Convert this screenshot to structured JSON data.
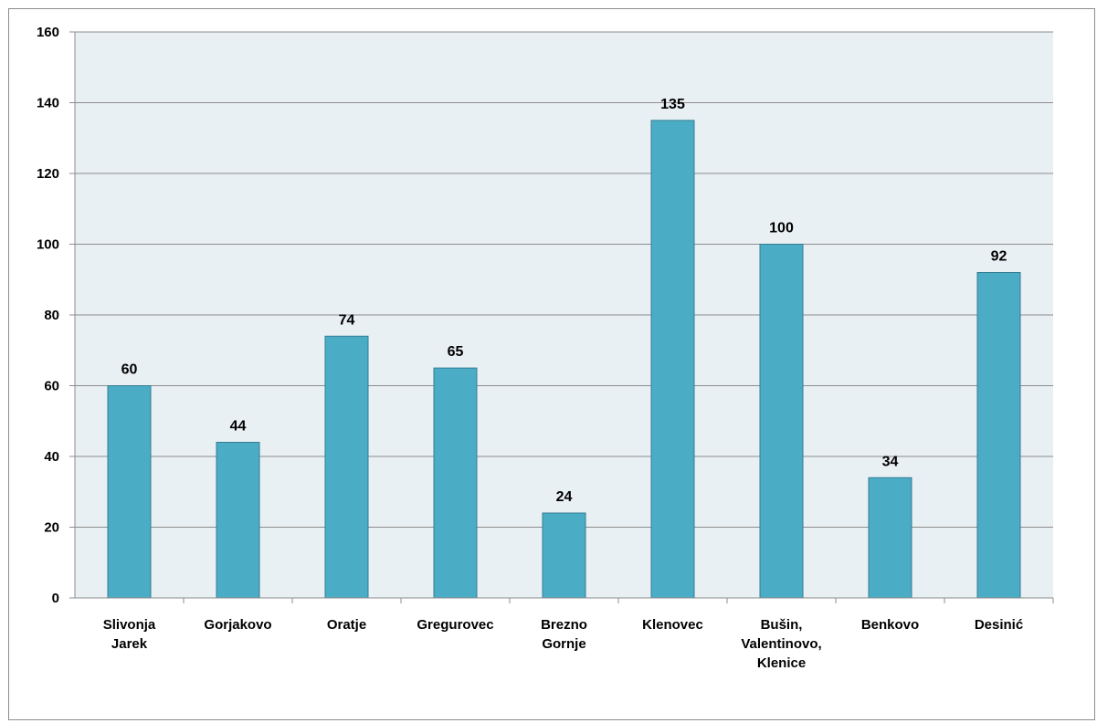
{
  "chart_data": {
    "type": "bar",
    "title": "",
    "xlabel": "",
    "ylabel": "",
    "categories": [
      [
        "Slivonja",
        "Jarek"
      ],
      [
        "Gorjakovo"
      ],
      [
        "Oratje"
      ],
      [
        "Gregurovec"
      ],
      [
        "Brezno",
        "Gornje"
      ],
      [
        "Klenovec"
      ],
      [
        "Bušin,",
        "Valentinovo,",
        "Klenice"
      ],
      [
        "Benkovo"
      ],
      [
        "Desinić"
      ]
    ],
    "values": [
      60,
      44,
      74,
      65,
      24,
      135,
      100,
      34,
      92
    ],
    "ylim": [
      0,
      160
    ],
    "yticks": [
      0,
      20,
      40,
      60,
      80,
      100,
      120,
      140,
      160
    ],
    "grid": true,
    "legend": "none",
    "colors": {
      "bar": "#4bacc6",
      "bar_edge": "#357d91",
      "plot_bg": "#e9f0f4",
      "gridline": "#8c8c8c",
      "axis": "#8c8c8c"
    }
  }
}
